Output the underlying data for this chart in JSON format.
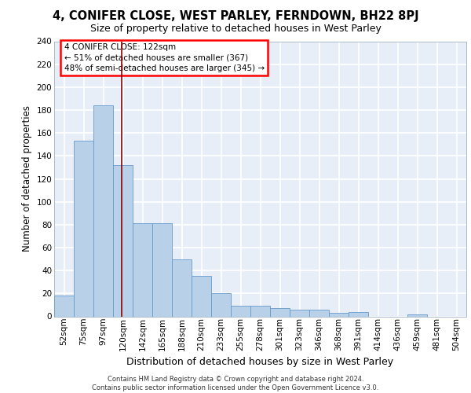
{
  "title": "4, CONIFER CLOSE, WEST PARLEY, FERNDOWN, BH22 8PJ",
  "subtitle": "Size of property relative to detached houses in West Parley",
  "xlabel": "Distribution of detached houses by size in West Parley",
  "ylabel": "Number of detached properties",
  "footer_line1": "Contains HM Land Registry data © Crown copyright and database right 2024.",
  "footer_line2": "Contains public sector information licensed under the Open Government Licence v3.0.",
  "categories": [
    "52sqm",
    "75sqm",
    "97sqm",
    "120sqm",
    "142sqm",
    "165sqm",
    "188sqm",
    "210sqm",
    "233sqm",
    "255sqm",
    "278sqm",
    "301sqm",
    "323sqm",
    "346sqm",
    "368sqm",
    "391sqm",
    "414sqm",
    "436sqm",
    "459sqm",
    "481sqm",
    "504sqm"
  ],
  "values": [
    18,
    153,
    184,
    132,
    81,
    81,
    50,
    35,
    20,
    9,
    9,
    7,
    6,
    6,
    3,
    4,
    0,
    0,
    2,
    0,
    0
  ],
  "bar_color": "#b8d0e8",
  "bar_edge_color": "#6699cc",
  "vline_x": 2.95,
  "vline_color": "#8b0000",
  "annotation_text": "4 CONIFER CLOSE: 122sqm\n← 51% of detached houses are smaller (367)\n48% of semi-detached houses are larger (345) →",
  "ylim": [
    0,
    240
  ],
  "yticks": [
    0,
    20,
    40,
    60,
    80,
    100,
    120,
    140,
    160,
    180,
    200,
    220,
    240
  ],
  "bg_color": "#e8eef8",
  "grid_color": "#ffffff",
  "title_fontsize": 10.5,
  "subtitle_fontsize": 9,
  "ylabel_fontsize": 8.5,
  "xlabel_fontsize": 9,
  "tick_fontsize": 7.5,
  "annot_fontsize": 7.5,
  "footer_fontsize": 6.0
}
